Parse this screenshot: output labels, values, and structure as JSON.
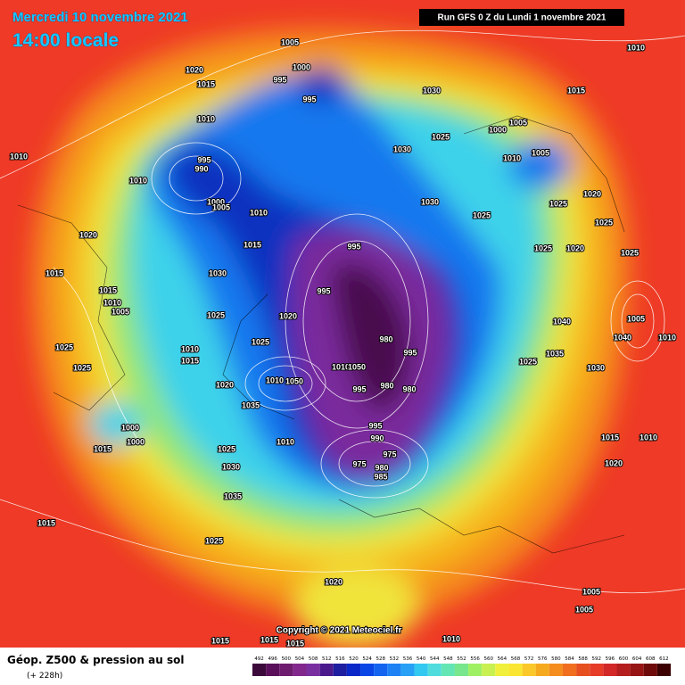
{
  "header": {
    "date": "Mercredi 10 novembre 2021",
    "time": "14:00 locale",
    "run": "Run GFS 0 Z du Lundi 1 novembre 2021"
  },
  "copyright": "Copyright © 2021 Meteociel.fr",
  "footer": {
    "title": "Géop. Z500 & pression au sol",
    "lead": "(+ 228h)"
  },
  "legend": {
    "values": [
      492,
      496,
      500,
      504,
      508,
      512,
      516,
      520,
      524,
      528,
      532,
      536,
      540,
      544,
      548,
      552,
      556,
      560,
      564,
      568,
      572,
      576,
      580,
      584,
      588,
      592,
      596,
      600,
      604,
      608,
      612
    ],
    "colors": [
      "#3b0a3b",
      "#5a0f5a",
      "#6e1c6e",
      "#82288c",
      "#7a2fa0",
      "#4a1a8c",
      "#1e1ea0",
      "#0a28c8",
      "#0a46e6",
      "#1464f0",
      "#1e82f5",
      "#28a0f5",
      "#32c8f0",
      "#50dcdc",
      "#64e6b4",
      "#78e68c",
      "#a0f064",
      "#c8f050",
      "#f0f03c",
      "#fae632",
      "#fac828",
      "#f5aa1e",
      "#f58c1e",
      "#f06e1e",
      "#e6501e",
      "#e63c28",
      "#d22828",
      "#b41e1e",
      "#961414",
      "#6e0a0a",
      "#3c0000"
    ]
  },
  "isobar_labels": [
    "1005",
    "1010",
    "1020",
    "1000",
    "1015",
    "995",
    "995",
    "1030",
    "1015",
    "1010",
    "1005",
    "1000",
    "1030",
    "1025",
    "995",
    "990",
    "1010",
    "1005",
    "1010",
    "1010",
    "1020",
    "1000",
    "1005",
    "1010",
    "1030",
    "1025",
    "1025",
    "1025",
    "1020",
    "995",
    "1015",
    "1025",
    "1020",
    "1025",
    "1015",
    "1030",
    "995",
    "1015",
    "1010",
    "1005",
    "1025",
    "1020",
    "1040",
    "1005",
    "980",
    "1040",
    "1010",
    "1025",
    "1010",
    "1025",
    "995",
    "1035",
    "1015",
    "1025",
    "1010",
    "1050",
    "1030",
    "1025",
    "1010",
    "1050",
    "1020",
    "995",
    "980",
    "980",
    "1035",
    "995",
    "1000",
    "990",
    "1000",
    "1015",
    "1010",
    "1010",
    "975",
    "1025",
    "1015",
    "975",
    "980",
    "985",
    "1020",
    "1030",
    "1035",
    "1015",
    "1025",
    "1020",
    "1005",
    "1005",
    "1015",
    "1015",
    "1015",
    "1010"
  ]
}
